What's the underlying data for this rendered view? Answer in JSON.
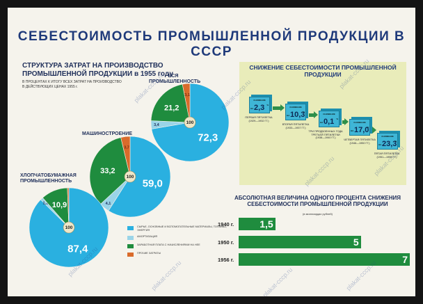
{
  "meta": {
    "fine_print_left": "",
    "fine_print_right": "",
    "fine_print_bottom": "",
    "watermark": "plakat-cccp.ru"
  },
  "titles": {
    "main": "СЕБЕСТОИМОСТЬ ПРОМЫШЛЕННОЙ ПРОДУКЦИИ В СССР",
    "left_line1": "СТРУКТУРА ЗАТРАТ НА ПРОИЗВОДСТВО",
    "left_line2": "ПРОМЫШЛЕННОЙ ПРОДУКЦИИ в 1955 году",
    "left_note_line1": "В ПРОЦЕНТАХ К ИТОГУ ВСЕХ ЗАТРАТ НА ПРОИЗВОДСТВО",
    "left_note_line2": "В ДЕЙСТВУЮЩИХ ЦЕНАХ 1955 г."
  },
  "legend": [
    {
      "color": "#2ab0e0",
      "text": "СЫРЬЕ, ОСНОВНЫЕ И ВСПОМОГАТЕЛЬНЫЕ МАТЕРИАЛЫ, ТОПЛИВО, ЭНЕРГИЯ"
    },
    {
      "color": "#9ad4e8",
      "text": "АМОРТИЗАЦИЯ"
    },
    {
      "color": "#1f8c3e",
      "text": "ЗАРАБОТНАЯ ПЛАТА С НАЧИСЛЕНИЯМИ НА НЕЕ"
    },
    {
      "color": "#d96b2b",
      "text": "ПРОЧИЕ ЗАТРАТЫ"
    }
  ],
  "chart_data": [
    {
      "type": "pie",
      "title": "ВСЯ ПРОМЫШЛЕННОСТЬ",
      "categories": [
        "Сырье и материалы",
        "Амортизация",
        "Заработная плата",
        "Прочие затраты"
      ],
      "values": [
        72.3,
        3.4,
        21.2,
        3.1
      ],
      "labels": [
        "72,3",
        "3,4",
        "21,2",
        "3,1"
      ],
      "total_label": "100",
      "colors": [
        "#2ab0e0",
        "#9ad4e8",
        "#1f8c3e",
        "#d96b2b"
      ]
    },
    {
      "type": "pie",
      "title": "МАШИНОСТРОЕНИЕ",
      "categories": [
        "Сырье и материалы",
        "Амортизация",
        "Заработная плата",
        "Прочие затраты"
      ],
      "values": [
        59.0,
        4.1,
        33.2,
        3.7
      ],
      "labels": [
        "59,0",
        "4,1",
        "33,2",
        "3,7"
      ],
      "total_label": "100",
      "colors": [
        "#2ab0e0",
        "#9ad4e8",
        "#1f8c3e",
        "#d96b2b"
      ]
    },
    {
      "type": "pie",
      "title": "ХЛОПЧАТОБУМАЖНАЯ ПРОМЫШЛЕННОСТЬ",
      "categories": [
        "Сырье и материалы",
        "Амортизация",
        "Заработная плата",
        "Прочие затраты"
      ],
      "values": [
        87.4,
        1.1,
        10.9,
        0.6
      ],
      "labels": [
        "87,4",
        "1,1",
        "10,9",
        ""
      ],
      "total_label": "100",
      "colors": [
        "#2ab0e0",
        "#9ad4e8",
        "#1f8c3e",
        "#d96b2b"
      ]
    },
    {
      "type": "bar",
      "title": "СНИЖЕНИЕ СЕБЕСТОИМОСТИ ПРОМЫШЛЕННОЙ ПРОДУКЦИИ",
      "categories": [
        "ПЕРВАЯ ПЯТИЛЕТКА",
        "ВТОРАЯ ПЯТИЛЕТКА",
        "ТРИ ПРЕДВОЕННЫХ ГОДА ТРЕТЬЕЙ ПЯТИЛЕТКИ",
        "ЧЕТВЕРТАЯ ПЯТИЛЕТКА",
        "ПЯТАЯ ПЯТИЛЕТКА"
      ],
      "periods": [
        "(1929—1932 гг.)",
        "(1933—1937 гг.)",
        "(1938—1940 гг.)",
        "(1946—1950 гг.)",
        "(1951—1955 гг.)"
      ],
      "values": [
        2.3,
        10.3,
        0.1,
        17.0,
        23.3
      ],
      "labels": [
        "2,3",
        "10,3",
        "0,1",
        "17,0",
        "23,3"
      ],
      "tag": "СНИЖЕНИЕ",
      "na": "НА",
      "unit": "%"
    },
    {
      "type": "bar",
      "title": "АБСОЛЮТНАЯ ВЕЛИЧИНА ОДНОГО ПРОЦЕНТА СНИЖЕНИЯ СЕБЕСТОИМОСТИ ПРОМЫШЛЕННОЙ ПРОДУКЦИИ",
      "ylabel": "(в миллиардах рублей)",
      "categories": [
        "1940 г.",
        "1950 г.",
        "1956 г."
      ],
      "values": [
        1.5,
        5,
        7
      ],
      "labels": [
        "1,5",
        "5",
        "7"
      ]
    }
  ]
}
